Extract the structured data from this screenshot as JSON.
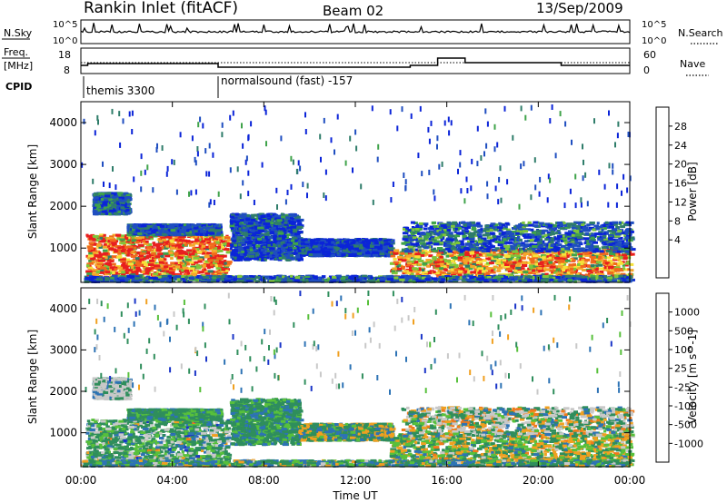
{
  "header": {
    "title": "Rankin Inlet (fitACF)",
    "beam": "Beam 02",
    "date": "13/Sep/2009"
  },
  "nsky_panel": {
    "left_label": "N.Sky",
    "right_label": "N.Search",
    "left_ticks": [
      "10^5",
      "10^0"
    ],
    "right_ticks": [
      "10^5",
      "10^0"
    ]
  },
  "freq_panel": {
    "left_label_1": "Freq.",
    "left_label_2": "[MHz]",
    "right_label": "Nave",
    "left_ticks": [
      "18",
      "8"
    ],
    "right_ticks": [
      "60",
      "0"
    ]
  },
  "cpid": {
    "label": "CPID",
    "segments": [
      {
        "name": "themis 3300",
        "start_hour": 0,
        "end_hour": 6
      },
      {
        "name": "normalsound (fast) -157",
        "start_hour": 6,
        "end_hour": 24
      }
    ]
  },
  "chart_data": [
    {
      "type": "heatmap",
      "name": "power",
      "ylabel": "Slant Range [km]",
      "xlabel": "",
      "xlim": [
        0,
        24
      ],
      "ylim": [
        180,
        4500
      ],
      "y_ticks": [
        "1000",
        "2000",
        "3000",
        "4000"
      ],
      "colorbar": {
        "label": "Power [dB]",
        "ticks": [
          "28",
          "24",
          "20",
          "16",
          "12",
          "8",
          "4"
        ],
        "colors": [
          "#0b24d8",
          "#1f4ec0",
          "#2f7d6a",
          "#3fa34a",
          "#7ec63a",
          "#f6e23a",
          "#f4a72a",
          "#f06a1c",
          "#e81f1f"
        ]
      }
    },
    {
      "type": "heatmap",
      "name": "velocity",
      "ylabel": "Slant Range [km]",
      "xlabel": "Time UT",
      "xlim": [
        0,
        24
      ],
      "ylim": [
        180,
        4500
      ],
      "y_ticks": [
        "1000",
        "2000",
        "3000",
        "4000"
      ],
      "x_ticks": [
        "00:00",
        "04:00",
        "08:00",
        "12:00",
        "16:00",
        "20:00",
        "00:00"
      ],
      "colorbar": {
        "label": "Velocity [m s^-1]",
        "ticks": [
          "1000",
          "500",
          "100",
          "25",
          "-25",
          "-100",
          "-500",
          "-1000"
        ],
        "colors": [
          "#1a35c8",
          "#2d73b5",
          "#2f8e5c",
          "#57c03b",
          "#c8c8c8",
          "#f0a020",
          "#f07a1a",
          "#ef4a1a",
          "#e21e1e"
        ]
      }
    }
  ]
}
